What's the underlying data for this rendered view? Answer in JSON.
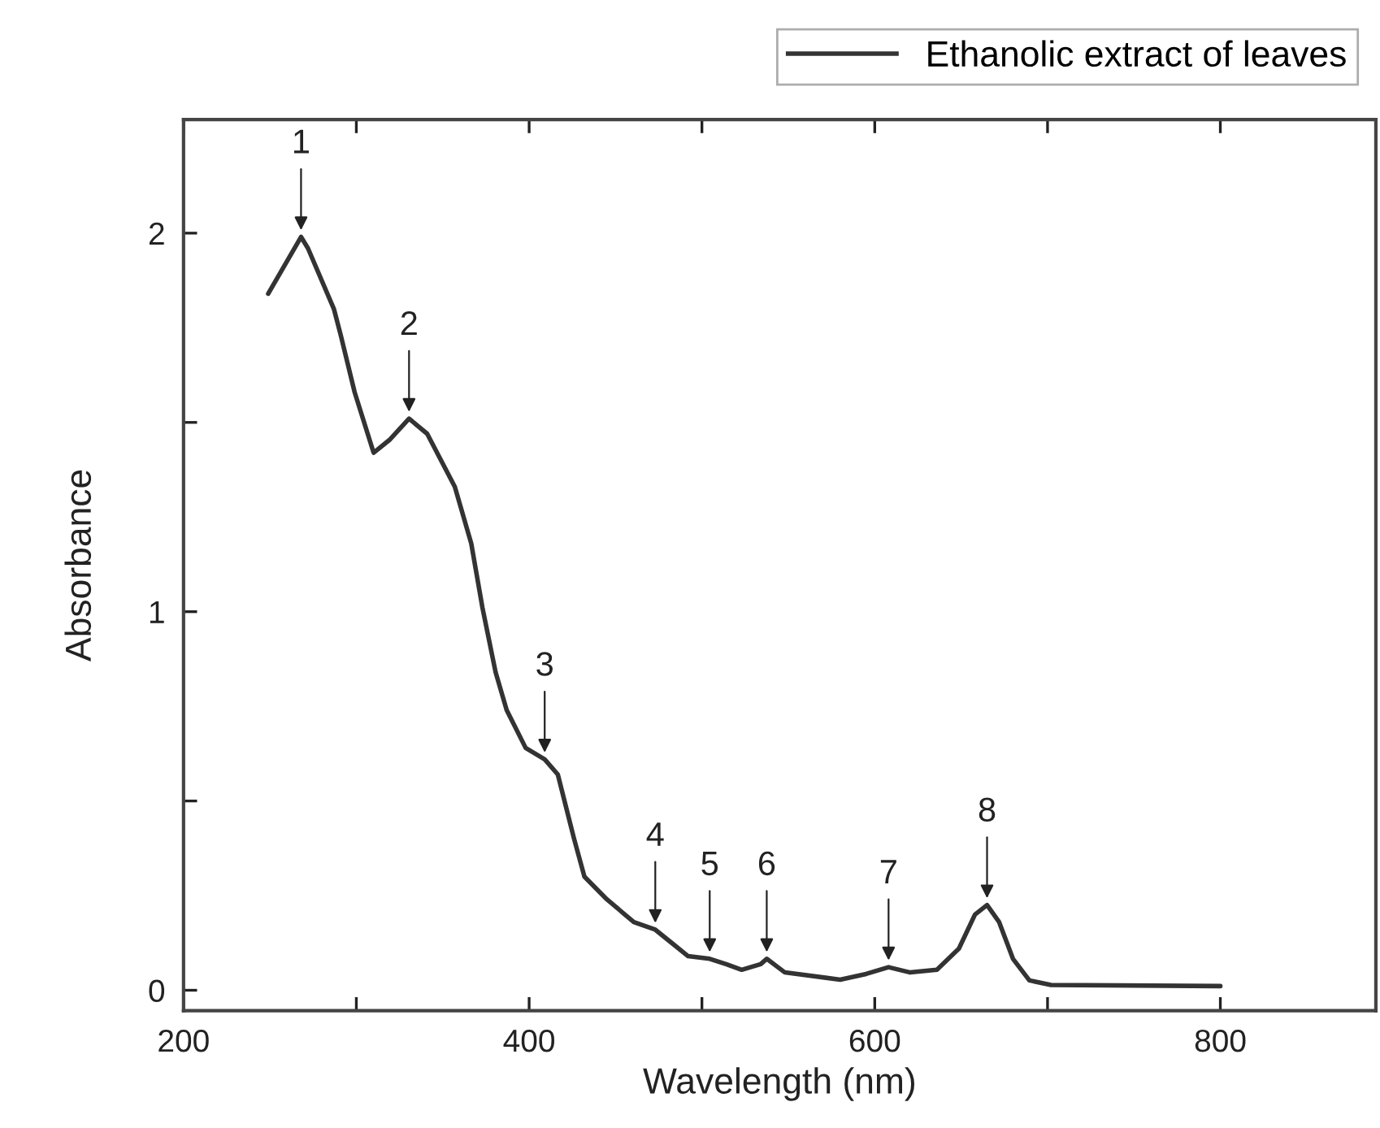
{
  "chart_data": {
    "type": "line",
    "xlabel": "Wavelength (nm)",
    "ylabel": "Absorbance",
    "xlim": [
      200,
      890
    ],
    "ylim": [
      -0.054,
      2.3
    ],
    "xticks": [
      200,
      {
        "value": 300,
        "label": null
      },
      400,
      {
        "value": 500,
        "label": null
      },
      600,
      {
        "value": 700,
        "label": null
      },
      800
    ],
    "yticks": [
      0,
      {
        "value": 0.5,
        "label": null
      },
      1,
      {
        "value": 1.5,
        "label": null
      },
      2
    ],
    "legend": "top right",
    "grid": false,
    "line_style": "solid",
    "marker": "none",
    "series": [
      {
        "name": "Ethanolic extract of leaves",
        "color": "#333333",
        "x": [
          249,
          268,
          272,
          287,
          291,
          299,
          310,
          319.5,
          330.5,
          341,
          357,
          366.5,
          373,
          380.6,
          387,
          398,
          409,
          416.6,
          426,
          432,
          445,
          460.6,
          473,
          482.5,
          492,
          504.5,
          514,
          523,
          534,
          537.5,
          548,
          580,
          595,
          608,
          620.5,
          636,
          648.7,
          658,
          665,
          672,
          680,
          689.5,
          702,
          800
        ],
        "values": [
          1.84,
          1.99,
          1.96,
          1.8,
          1.73,
          1.58,
          1.42,
          1.455,
          1.51,
          1.47,
          1.33,
          1.18,
          1.01,
          0.84,
          0.74,
          0.64,
          0.61,
          0.57,
          0.4,
          0.3,
          0.24,
          0.18,
          0.16,
          0.125,
          0.09,
          0.083,
          0.069,
          0.054,
          0.069,
          0.083,
          0.047,
          0.028,
          0.043,
          0.061,
          0.047,
          0.054,
          0.11,
          0.2,
          0.225,
          0.18,
          0.083,
          0.026,
          0.014,
          0.011
        ]
      }
    ],
    "annotations": [
      {
        "text": "1",
        "x": 268,
        "y": 1.99
      },
      {
        "text": "2",
        "x": 330.5,
        "y": 1.51
      },
      {
        "text": "3",
        "x": 409,
        "y": 0.61
      },
      {
        "text": "4",
        "x": 473,
        "y": 0.16
      },
      {
        "text": "5",
        "x": 504.5,
        "y": 0.083
      },
      {
        "text": "6",
        "x": 537.5,
        "y": 0.083
      },
      {
        "text": "7",
        "x": 608,
        "y": 0.061
      },
      {
        "text": "8",
        "x": 665,
        "y": 0.225
      }
    ]
  }
}
